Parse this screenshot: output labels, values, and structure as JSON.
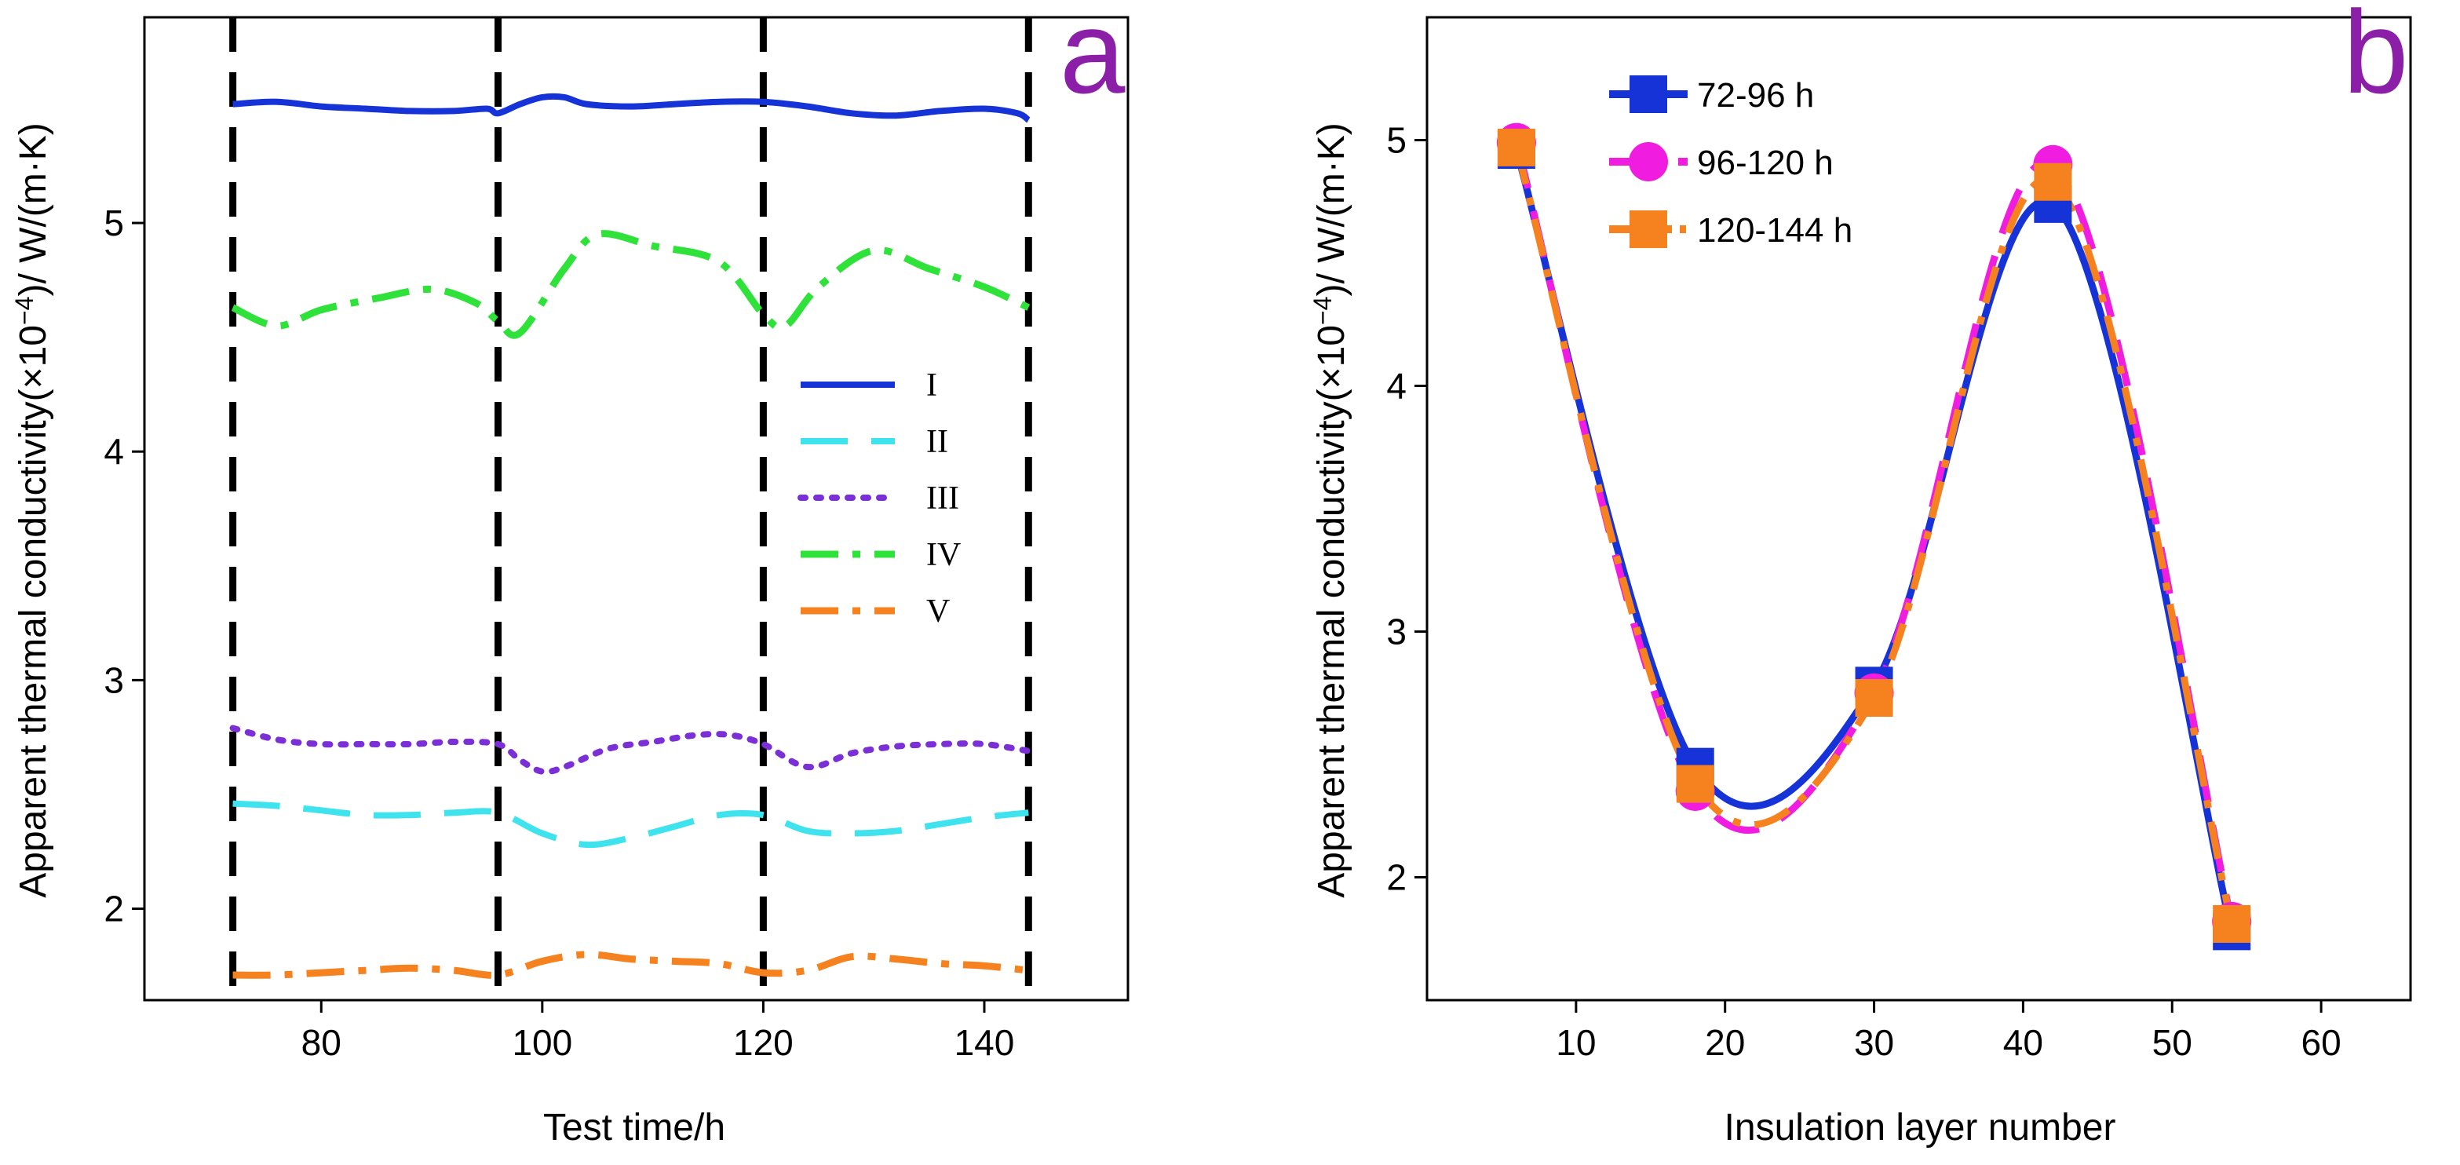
{
  "chart_data": [
    {
      "panel": "a",
      "type": "line",
      "panel_label": "a",
      "xlabel": "Test  time/h",
      "ylabel": "Apparent  thermal  conductivity(×10",
      "ylabel_sup": "−4",
      "ylabel_tail": ")/ W/(m·K)",
      "xlim": [
        64,
        153
      ],
      "ylim": [
        1.6,
        5.9
      ],
      "xticks": [
        80,
        100,
        120,
        140
      ],
      "yticks": [
        2,
        3,
        4,
        5
      ],
      "vlines": [
        72,
        96,
        120,
        144
      ],
      "legend_position": "center-right",
      "series": [
        {
          "name": "I",
          "color": "#1533d6",
          "dash": "solid",
          "x": [
            72,
            76,
            80,
            84,
            88,
            92,
            95,
            96,
            98,
            100,
            102,
            104,
            108,
            112,
            116,
            120,
            124,
            128,
            132,
            136,
            140,
            143,
            144
          ],
          "y": [
            5.52,
            5.53,
            5.51,
            5.5,
            5.49,
            5.49,
            5.5,
            5.48,
            5.52,
            5.55,
            5.55,
            5.52,
            5.51,
            5.52,
            5.53,
            5.53,
            5.51,
            5.48,
            5.47,
            5.49,
            5.5,
            5.48,
            5.45
          ]
        },
        {
          "name": "II",
          "color": "#3fe3ee",
          "dash": "long-dash",
          "x": [
            72,
            76,
            80,
            84,
            88,
            92,
            96,
            100,
            104,
            108,
            112,
            116,
            120,
            124,
            128,
            132,
            136,
            140,
            144
          ],
          "y": [
            2.46,
            2.45,
            2.43,
            2.41,
            2.41,
            2.42,
            2.42,
            2.33,
            2.28,
            2.31,
            2.36,
            2.41,
            2.41,
            2.34,
            2.33,
            2.34,
            2.37,
            2.4,
            2.42
          ]
        },
        {
          "name": "III",
          "color": "#7b2fd6",
          "dash": "dot",
          "x": [
            72,
            76,
            80,
            84,
            88,
            92,
            96,
            98,
            100,
            102,
            106,
            110,
            114,
            117,
            120,
            124,
            128,
            132,
            136,
            140,
            144
          ],
          "y": [
            2.79,
            2.74,
            2.72,
            2.72,
            2.72,
            2.73,
            2.72,
            2.65,
            2.6,
            2.62,
            2.7,
            2.73,
            2.76,
            2.76,
            2.72,
            2.62,
            2.68,
            2.71,
            2.72,
            2.72,
            2.69
          ]
        },
        {
          "name": "IV",
          "color": "#2ee23a",
          "dash": "dash-dot",
          "x": [
            72,
            76,
            80,
            85,
            90,
            94,
            96,
            98,
            102,
            105,
            110,
            116,
            120,
            122,
            125,
            130,
            135,
            140,
            144
          ],
          "y": [
            4.63,
            4.55,
            4.62,
            4.67,
            4.71,
            4.65,
            4.57,
            4.52,
            4.8,
            4.95,
            4.9,
            4.83,
            4.6,
            4.55,
            4.72,
            4.88,
            4.8,
            4.72,
            4.63
          ]
        },
        {
          "name": "V",
          "color": "#f5821f",
          "dash": "dash-dot",
          "x": [
            72,
            76,
            80,
            84,
            88,
            92,
            96,
            100,
            104,
            108,
            112,
            116,
            120,
            124,
            128,
            132,
            136,
            140,
            144
          ],
          "y": [
            1.71,
            1.71,
            1.72,
            1.73,
            1.74,
            1.73,
            1.71,
            1.77,
            1.8,
            1.78,
            1.77,
            1.76,
            1.72,
            1.73,
            1.79,
            1.78,
            1.76,
            1.75,
            1.73
          ]
        }
      ]
    },
    {
      "panel": "b",
      "type": "line",
      "panel_label": "b",
      "xlabel": "Insulation layer number",
      "ylabel": "Apparent  thermal  conductivity(×10",
      "ylabel_sup": "−4",
      "ylabel_tail": ")/ W/(m·K)",
      "xlim": [
        0,
        66
      ],
      "ylim": [
        1.5,
        5.5
      ],
      "xticks": [
        10,
        20,
        30,
        40,
        50,
        60
      ],
      "yticks": [
        2,
        3,
        4,
        5
      ],
      "legend_position": "top-left",
      "series": [
        {
          "name": "72-96 h",
          "color": "#1533d6",
          "dash": "solid",
          "marker": "square",
          "x": [
            6,
            18,
            30,
            42,
            54
          ],
          "y": [
            4.96,
            2.45,
            2.78,
            4.74,
            1.78
          ]
        },
        {
          "name": "96-120 h",
          "color": "#f01ce0",
          "dash": "long-dash",
          "marker": "circle",
          "x": [
            6,
            18,
            30,
            42,
            54
          ],
          "y": [
            4.99,
            2.35,
            2.75,
            4.9,
            1.82
          ]
        },
        {
          "name": "120-144 h",
          "color": "#f5821f",
          "dash": "dash-dot",
          "marker": "square",
          "x": [
            6,
            18,
            30,
            42,
            54
          ],
          "y": [
            4.97,
            2.38,
            2.73,
            4.83,
            1.81
          ]
        }
      ]
    }
  ]
}
